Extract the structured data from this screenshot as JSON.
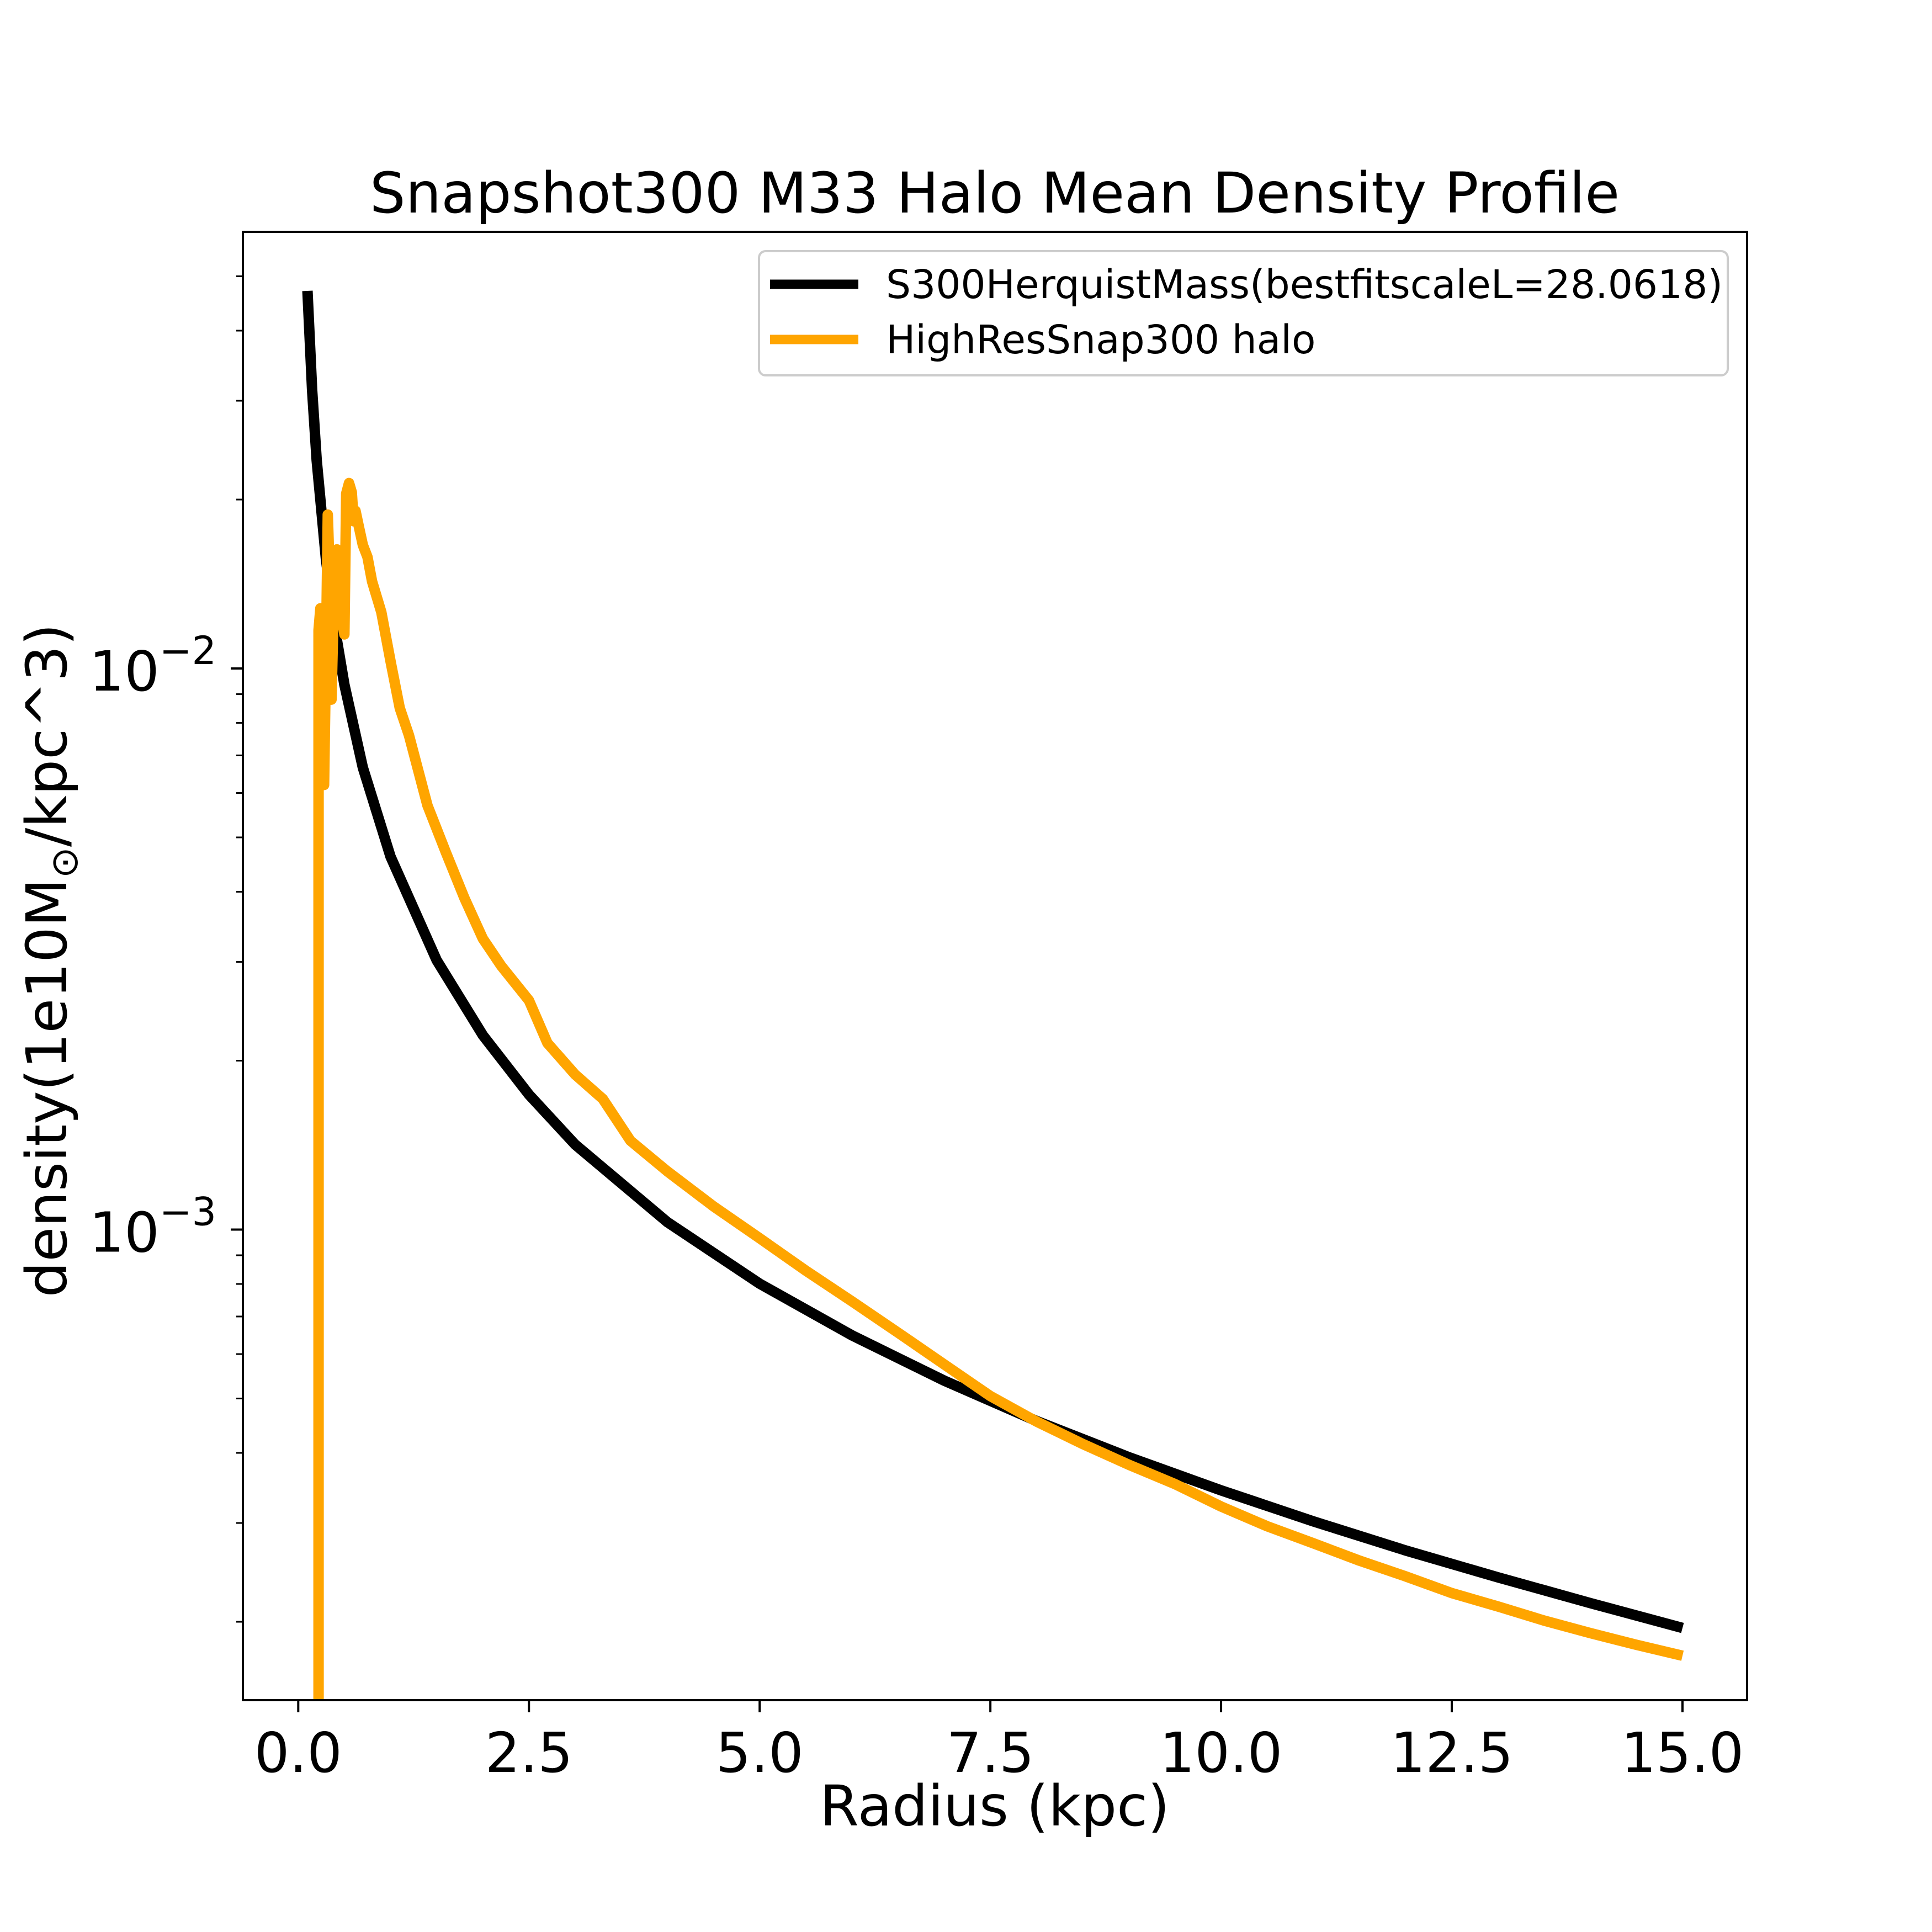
{
  "chart_data": {
    "type": "line",
    "title": "Snapshot300 M33 Halo Mean Density Profile",
    "xlabel": "Radius (kpc)",
    "ylabel_prefix": "density(1e10M",
    "ylabel_sun": "⊙",
    "ylabel_suffix": "/kpc^3)",
    "xlim": [
      -0.6,
      15.7
    ],
    "ylim": [
      0.000145,
      0.06
    ],
    "yscale": "log",
    "legend_position": "top-right",
    "x_ticks": [
      {
        "value": 0.0,
        "label": "0.0"
      },
      {
        "value": 2.5,
        "label": "2.5"
      },
      {
        "value": 5.0,
        "label": "5.0"
      },
      {
        "value": 7.5,
        "label": "7.5"
      },
      {
        "value": 10.0,
        "label": "10.0"
      },
      {
        "value": 12.5,
        "label": "12.5"
      },
      {
        "value": 15.0,
        "label": "15.0"
      }
    ],
    "y_ticks": [
      {
        "value": 0.01,
        "base": "10",
        "exp": "−2"
      },
      {
        "value": 0.001,
        "base": "10",
        "exp": "−3"
      }
    ],
    "series": [
      {
        "name": "S300HerquistMass(bestfitscaleL=28.0618)",
        "color": "#000000",
        "x": [
          0.1,
          0.15,
          0.2,
          0.3,
          0.4,
          0.5,
          0.7,
          1.0,
          1.5,
          2.0,
          2.5,
          3.0,
          4.0,
          5.0,
          6.0,
          7.0,
          8.0,
          9.0,
          10.0,
          11.0,
          12.0,
          13.0,
          14.0,
          15.0
        ],
        "y": [
          0.0471,
          0.0314,
          0.0235,
          0.01566,
          0.01172,
          0.00936,
          0.00666,
          0.00462,
          0.00302,
          0.00222,
          0.00174,
          0.001418,
          0.001031,
          0.000801,
          0.000648,
          0.000538,
          0.000456,
          0.000393,
          0.000343,
          0.000302,
          0.000268,
          0.00024,
          0.000216,
          0.000195
        ]
      },
      {
        "name": "HighResSnap300 halo",
        "color": "#ffa500",
        "x": [
          0.22,
          0.22,
          0.24,
          0.26,
          0.28,
          0.3,
          0.32,
          0.34,
          0.36,
          0.38,
          0.4,
          0.42,
          0.45,
          0.48,
          0.5,
          0.52,
          0.55,
          0.58,
          0.6,
          0.62,
          0.65,
          0.7,
          0.75,
          0.8,
          0.9,
          1.0,
          1.1,
          1.2,
          1.4,
          1.6,
          1.8,
          2.0,
          2.2,
          2.5,
          2.7,
          3.0,
          3.3,
          3.6,
          4.0,
          4.5,
          5.0,
          5.5,
          6.0,
          6.5,
          7.0,
          7.5,
          8.0,
          8.5,
          9.0,
          9.5,
          10.0,
          10.5,
          11.0,
          11.5,
          12.0,
          12.5,
          13.0,
          13.5,
          14.0,
          14.5,
          15.0
        ],
        "y": [
          0.000145,
          0.0117,
          0.0128,
          0.0113,
          0.0062,
          0.0105,
          0.0188,
          0.0149,
          0.0088,
          0.0121,
          0.0146,
          0.0163,
          0.0159,
          0.0121,
          0.0115,
          0.0205,
          0.0214,
          0.0206,
          0.0183,
          0.0191,
          0.0181,
          0.0166,
          0.0158,
          0.0143,
          0.0126,
          0.0103,
          0.0085,
          0.0076,
          0.0057,
          0.0047,
          0.0039,
          0.0033,
          0.00295,
          0.00256,
          0.00215,
          0.00189,
          0.00171,
          0.00144,
          0.00127,
          0.0011,
          0.000965,
          0.000845,
          0.000745,
          0.000655,
          0.000575,
          0.000505,
          0.000455,
          0.000415,
          0.000381,
          0.000352,
          0.000321,
          0.000296,
          0.000276,
          0.000257,
          0.000241,
          0.000225,
          0.000213,
          0.000201,
          0.000191,
          0.000182,
          0.000174
        ]
      }
    ]
  }
}
